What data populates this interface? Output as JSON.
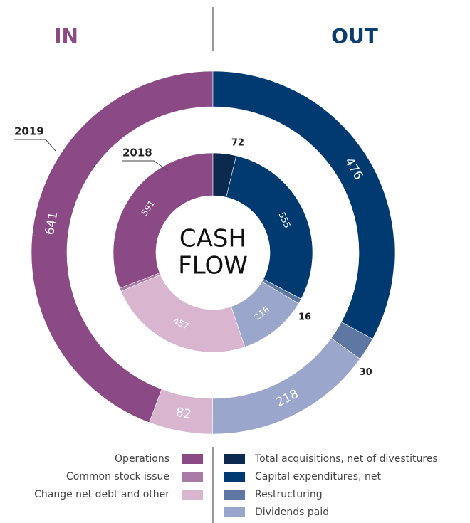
{
  "chart_data": {
    "type": "donut",
    "title": [
      "CASH",
      "FLOW"
    ],
    "groups": [
      "IN",
      "OUT"
    ],
    "group_colors": [
      "#8b4a86",
      "#0b3d6f"
    ],
    "rings": [
      "2019",
      "2018"
    ],
    "series": [
      {
        "name": "Operations",
        "group": "IN",
        "color": "#8b4a86",
        "values": [
          641,
          591
        ]
      },
      {
        "name": "Common stock issue",
        "group": "IN",
        "color": "#a97aa6",
        "values": [
          null,
          10
        ]
      },
      {
        "name": "Change net debt and other",
        "group": "IN",
        "color": "#d9b5cf",
        "values": [
          82,
          457
        ]
      },
      {
        "name": "Total acquisitions, net of divestitures",
        "group": "OUT",
        "color": "#0b2a4e",
        "values": [
          null,
          72
        ]
      },
      {
        "name": "Capital expenditures, net",
        "group": "OUT",
        "color": "#003a70",
        "values": [
          476,
          555
        ]
      },
      {
        "name": "Restructuring",
        "group": "OUT",
        "color": "#5f77a3",
        "values": [
          30,
          16
        ]
      },
      {
        "name": "Dividends paid",
        "group": "OUT",
        "color": "#9aa6cb",
        "values": [
          218,
          216
        ]
      }
    ]
  }
}
